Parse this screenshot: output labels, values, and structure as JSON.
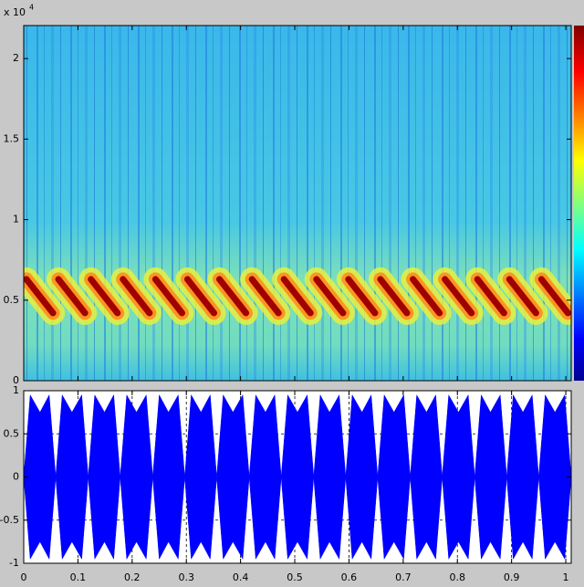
{
  "chart_data": [
    {
      "type": "spectrogram",
      "y_offset_text": "x 10",
      "y_offset_power": "4",
      "xlim": [
        0,
        1.01
      ],
      "ylim": [
        0,
        22050
      ],
      "yticks": [
        0,
        {
          "value": 5000,
          "label": "0.5"
        },
        {
          "value": 10000,
          "label": "1"
        },
        {
          "value": 15000,
          "label": "1.5"
        },
        {
          "value": 20000,
          "label": "2"
        }
      ],
      "color": "#a00000",
      "x": [
        0,
        0.005,
        0.054,
        0.059,
        0.064,
        0.113,
        0.119,
        0.124,
        0.173,
        0.178,
        0.183,
        0.232,
        0.238,
        0.243,
        0.292,
        0.297,
        0.302,
        0.351,
        0.356,
        0.361,
        0.41,
        0.416,
        0.421,
        0.47,
        0.475,
        0.48,
        0.529,
        0.535,
        0.54,
        0.589,
        0.594,
        0.599,
        0.648,
        0.653,
        0.658,
        0.707,
        0.713,
        0.718,
        0.767,
        0.772,
        0.777,
        0.826,
        0.832,
        0.837,
        0.886,
        0.891,
        0.896,
        0.945,
        0.95,
        0.955,
        1.004
      ],
      "values": [
        null,
        6300,
        4200,
        null,
        6300,
        4200,
        null,
        6300,
        4200,
        null,
        6300,
        4200,
        null,
        6300,
        4200,
        null,
        6300,
        4200,
        null,
        6300,
        4200,
        null,
        6300,
        4200,
        null,
        6300,
        4200,
        null,
        6300,
        4200,
        null,
        6300,
        4200,
        null,
        6300,
        4200,
        null,
        6300,
        4200,
        null,
        6300,
        4200,
        null,
        6300,
        4200,
        null,
        6300,
        4200,
        null,
        6300,
        4200
      ]
    },
    {
      "type": "area",
      "xlim": [
        0,
        1.01
      ],
      "ylim": [
        -1,
        1
      ],
      "xticks": [
        0,
        0.1,
        0.2,
        0.3,
        0.4,
        0.5,
        0.6,
        0.7,
        0.8,
        0.9,
        1
      ],
      "yticks": [
        -1,
        -0.5,
        0,
        0.5,
        1
      ],
      "grid": true,
      "x": [
        0,
        0.012,
        0.03,
        0.047,
        0.059,
        0.071,
        0.089,
        0.107,
        0.119,
        0.131,
        0.149,
        0.166,
        0.178,
        0.19,
        0.208,
        0.226,
        0.238,
        0.25,
        0.267,
        0.285,
        0.297,
        0.309,
        0.327,
        0.344,
        0.356,
        0.368,
        0.386,
        0.404,
        0.416,
        0.428,
        0.446,
        0.463,
        0.475,
        0.487,
        0.505,
        0.523,
        0.535,
        0.547,
        0.564,
        0.582,
        0.594,
        0.606,
        0.624,
        0.641,
        0.653,
        0.665,
        0.683,
        0.701,
        0.713,
        0.725,
        0.743,
        0.76,
        0.772,
        0.784,
        0.802,
        0.82,
        0.832,
        0.844,
        0.861,
        0.879,
        0.891,
        0.903,
        0.921,
        0.938,
        0.95,
        0.962,
        0.98,
        0.998,
        1.01
      ],
      "series": [
        {
          "color": "#0000ff",
          "values": [
            0,
            0.95,
            0.75,
            0.95,
            0,
            0.95,
            0.75,
            0.95,
            0,
            0.95,
            0.75,
            0.95,
            0,
            0.95,
            0.75,
            0.95,
            0,
            0.95,
            0.75,
            0.95,
            0,
            0.95,
            0.75,
            0.95,
            0,
            0.95,
            0.75,
            0.95,
            0,
            0.95,
            0.75,
            0.95,
            0,
            0.95,
            0.75,
            0.95,
            0,
            0.95,
            0.75,
            0.95,
            0,
            0.95,
            0.75,
            0.95,
            0,
            0.95,
            0.75,
            0.95,
            0,
            0.95,
            0.75,
            0.95,
            0,
            0.95,
            0.75,
            0.95,
            0,
            0.95,
            0.75,
            0.95,
            0,
            0.95,
            0.75,
            0.95,
            0,
            0.95,
            0.75,
            0.95,
            0
          ]
        },
        {
          "color": "#0000ff",
          "values": [
            0,
            -0.95,
            -0.75,
            -0.95,
            0,
            -0.95,
            -0.75,
            -0.95,
            0,
            -0.95,
            -0.75,
            -0.95,
            0,
            -0.95,
            -0.75,
            -0.95,
            0,
            -0.95,
            -0.75,
            -0.95,
            0,
            -0.95,
            -0.75,
            -0.95,
            0,
            -0.95,
            -0.75,
            -0.95,
            0,
            -0.95,
            -0.75,
            -0.95,
            0,
            -0.95,
            -0.75,
            -0.95,
            0,
            -0.95,
            -0.75,
            -0.95,
            0,
            -0.95,
            -0.75,
            -0.95,
            0,
            -0.95,
            -0.75,
            -0.95,
            0,
            -0.95,
            -0.75,
            -0.95,
            0,
            -0.95,
            -0.75,
            -0.95,
            0,
            -0.95,
            -0.75,
            -0.95,
            0,
            -0.95,
            -0.75,
            -0.95,
            0,
            -0.95,
            -0.75,
            -0.95,
            0
          ]
        }
      ]
    }
  ]
}
